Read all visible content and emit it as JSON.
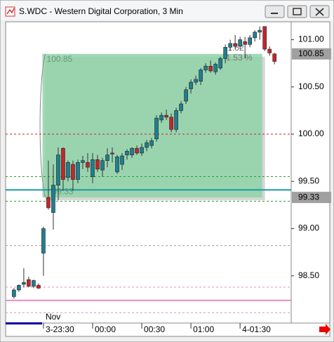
{
  "window": {
    "title": "S.WDC - Western Digital Corporation, 3 Min"
  },
  "chart_data": {
    "type": "candlestick",
    "up_color": "#1f7f8f",
    "down_color": "#c8242b",
    "open": [
      98.28,
      98.35,
      98.41,
      98.46,
      98.39,
      98.4,
      98.74,
      99.33,
      99.17,
      99.46,
      99.85,
      99.54,
      99.68,
      99.52,
      99.7,
      99.7,
      99.55,
      99.73,
      99.62,
      99.72,
      99.8,
      99.6,
      99.68,
      99.78,
      99.78,
      99.85,
      99.8,
      99.86,
      99.88,
      99.95,
      100.15,
      100.2,
      100.18,
      100.05,
      100.25,
      100.35,
      100.48,
      100.55,
      100.56,
      100.68,
      100.72,
      100.66,
      100.7,
      100.8,
      100.92,
      100.96,
      100.93,
      100.98,
      100.95,
      101.02,
      101.08,
      101.14,
      100.9,
      100.85
    ],
    "high": [
      98.37,
      98.41,
      98.58,
      98.49,
      98.46,
      98.42,
      99.02,
      99.72,
      99.68,
      99.86,
      99.86,
      99.72,
      99.72,
      99.73,
      99.77,
      99.8,
      99.8,
      99.78,
      99.75,
      99.85,
      99.86,
      99.78,
      99.8,
      99.84,
      99.86,
      99.88,
      99.9,
      99.94,
      99.96,
      100.2,
      100.23,
      100.26,
      100.22,
      100.28,
      100.35,
      100.5,
      100.58,
      100.62,
      100.7,
      100.75,
      100.78,
      100.76,
      100.82,
      100.95,
      101.0,
      101.05,
      101.03,
      101.03,
      101.05,
      101.1,
      101.14,
      101.14,
      100.93,
      100.86
    ],
    "low": [
      98.26,
      98.33,
      98.38,
      98.38,
      98.37,
      98.36,
      98.5,
      99.2,
      98.99,
      99.3,
      99.4,
      99.5,
      99.4,
      99.48,
      99.63,
      99.6,
      99.48,
      99.6,
      99.55,
      99.65,
      99.7,
      99.58,
      99.62,
      99.73,
      99.75,
      99.78,
      99.77,
      99.82,
      99.85,
      99.92,
      100.12,
      100.15,
      100.02,
      100.02,
      100.22,
      100.32,
      100.43,
      100.52,
      100.52,
      100.65,
      100.65,
      100.63,
      100.68,
      100.75,
      100.88,
      100.9,
      100.9,
      100.8,
      100.92,
      100.98,
      101.0,
      100.88,
      100.83,
      100.74
    ],
    "close": [
      98.35,
      98.4,
      98.43,
      98.39,
      98.45,
      98.37,
      99.0,
      99.22,
      99.46,
      99.78,
      99.52,
      99.7,
      99.52,
      99.7,
      99.72,
      99.65,
      99.73,
      99.63,
      99.72,
      99.78,
      99.79,
      99.76,
      99.77,
      99.82,
      99.85,
      99.8,
      99.86,
      99.91,
      99.93,
      100.17,
      100.2,
      100.18,
      100.05,
      100.25,
      100.32,
      100.47,
      100.55,
      100.58,
      100.68,
      100.72,
      100.67,
      100.74,
      100.8,
      100.92,
      100.96,
      100.93,
      101.0,
      100.95,
      101.02,
      101.08,
      101.1,
      100.9,
      100.86,
      100.77
    ],
    "xlim": [
      -1.7,
      56.4
    ],
    "xticks": [
      {
        "value": 6,
        "label": "3-23:30"
      },
      {
        "value": 16,
        "label": "00:00"
      },
      {
        "value": 26,
        "label": "00:30"
      },
      {
        "value": 36,
        "label": "01:00"
      },
      {
        "value": 46,
        "label": "4-01:30"
      }
    ],
    "x_annotation": "Nov",
    "ylim": [
      98.0,
      101.19
    ],
    "yticks": [
      {
        "value": 98.5,
        "label": "98.50"
      },
      {
        "value": 99,
        "label": "99.00"
      },
      {
        "value": 99.5,
        "label": "99.50"
      },
      {
        "value": 100,
        "label": "100.00"
      },
      {
        "value": 100.5,
        "label": "100.50"
      },
      {
        "value": 101,
        "label": "101.00"
      }
    ],
    "lines": [
      {
        "value": 100.0,
        "color": "#c8242b",
        "style": "dotted"
      },
      {
        "value": 99.55,
        "color": "#2ca02c",
        "style": "dotted"
      },
      {
        "value": 99.29,
        "color": "#2ca02c",
        "style": "dotted"
      },
      {
        "value": 99.41,
        "color": "#1a9aa0",
        "style": "solid"
      },
      {
        "value": 98.82,
        "color": "#999999",
        "style": "dotted"
      },
      {
        "value": 98.38,
        "color": "#e88ac8",
        "style": "dotted"
      },
      {
        "value": 98.24,
        "color": "#e88ac8",
        "style": "solid"
      },
      {
        "value": 98.11,
        "color": "#e88ac8",
        "style": "dotted"
      }
    ],
    "box": {
      "top": 100.85,
      "bottom": 99.33,
      "x_from": 5.8,
      "x_to": 50.5,
      "color": "#8fd3a8",
      "annotations": [
        "1.52",
        "1.53 %"
      ]
    }
  }
}
